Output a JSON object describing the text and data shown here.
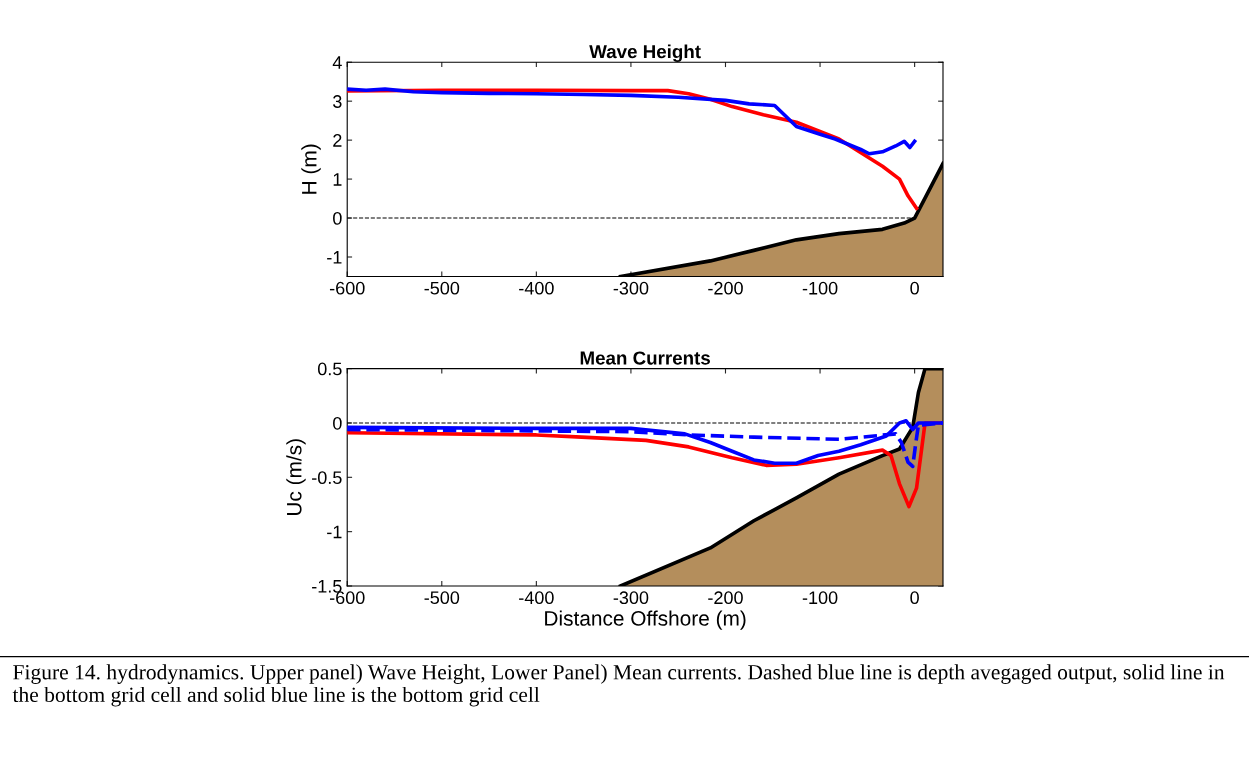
{
  "chart_data": [
    {
      "type": "line",
      "title": "Wave Height",
      "ylabel": "H (m)",
      "xlim": [
        -600,
        30
      ],
      "xticks": [
        -600,
        -500,
        -400,
        -300,
        -200,
        -100,
        0
      ],
      "ylim": [
        -1.5,
        4
      ],
      "yticks": [
        -1,
        0,
        1,
        2,
        3,
        4
      ],
      "grid": false,
      "line_style": "solid",
      "marker": "none",
      "ref_lines": [
        {
          "axis": "y",
          "value": 0,
          "color": "#000000",
          "line_style": "dashed"
        }
      ],
      "series": [
        {
          "type": "area",
          "color": "#b48e5c",
          "x": [
            -311,
            -216,
            -170,
            -125,
            -80,
            -34,
            -11,
            0,
            30
          ],
          "values": [
            -1.5,
            -1.1,
            -0.83,
            -0.56,
            -0.4,
            -0.29,
            -0.13,
            0,
            1.4
          ]
        },
        {
          "color": "#ff0000",
          "x": [
            -600,
            -500,
            -400,
            -300,
            -261,
            -239,
            -216,
            -193,
            -160,
            -125,
            -80,
            -34,
            -16,
            -7,
            2
          ],
          "values": [
            3.26,
            3.28,
            3.28,
            3.27,
            3.27,
            3.19,
            3.05,
            2.86,
            2.65,
            2.46,
            2.03,
            1.33,
            1.0,
            0.57,
            0.25
          ]
        },
        {
          "color": "#0000ff",
          "x": [
            -600,
            -580,
            -560,
            -530,
            -500,
            -450,
            -400,
            -350,
            -300,
            -250,
            -200,
            -175,
            -148,
            -125,
            -100,
            -84,
            -57,
            -48,
            -34,
            -20,
            -11,
            -5,
            0
          ],
          "values": [
            3.31,
            3.28,
            3.31,
            3.24,
            3.22,
            3.2,
            3.19,
            3.17,
            3.15,
            3.1,
            3.02,
            2.93,
            2.89,
            2.35,
            2.15,
            2.03,
            1.76,
            1.65,
            1.7,
            1.85,
            1.97,
            1.81,
            1.97
          ]
        }
      ]
    },
    {
      "type": "line",
      "title": "Mean Currents",
      "xlabel": "Distance Offshore (m)",
      "ylabel": "Uc (m/s)",
      "xlim": [
        -600,
        30
      ],
      "xticks": [
        -600,
        -500,
        -400,
        -300,
        -200,
        -100,
        0
      ],
      "ylim": [
        -1.5,
        0.5
      ],
      "yticks": [
        -1.5,
        -1,
        -0.5,
        0,
        0.5
      ],
      "grid": false,
      "line_style": "solid",
      "marker": "none",
      "ref_lines": [
        {
          "axis": "y",
          "value": 0,
          "color": "#000000",
          "line_style": "dashed"
        }
      ],
      "annotations": [
        "Figure 14. hydrodynamics. Upper panel) Wave Height, Lower Panel) Mean currents. Dashed blue line is depth avegaged output, solid line in the bottom grid cell and solid blue line is the bottom grid cell"
      ],
      "series": [
        {
          "type": "area",
          "color": "#b48e5c",
          "x": [
            -311,
            -216,
            -170,
            -125,
            -80,
            -34,
            -16,
            -2,
            4,
            11,
            30
          ],
          "values": [
            -1.5,
            -1.15,
            -0.9,
            -0.69,
            -0.47,
            -0.3,
            -0.24,
            -0.04,
            0.28,
            0.5,
            0.5
          ]
        },
        {
          "color": "#ff0000",
          "x": [
            -600,
            -400,
            -352,
            -284,
            -239,
            -193,
            -157,
            -125,
            -80,
            -34,
            -25,
            -16,
            -6,
            2,
            11,
            30
          ],
          "values": [
            -0.09,
            -0.11,
            -0.13,
            -0.16,
            -0.22,
            -0.32,
            -0.39,
            -0.38,
            -0.32,
            -0.25,
            -0.3,
            -0.56,
            -0.77,
            -0.6,
            0,
            0
          ]
        },
        {
          "color": "#0000ff",
          "line_style": "dashed",
          "x": [
            -600,
            -300,
            -239,
            -170,
            -80,
            -43,
            -20,
            -14,
            -7,
            -2,
            1,
            4,
            30
          ],
          "values": [
            -0.06,
            -0.08,
            -0.11,
            -0.13,
            -0.15,
            -0.12,
            -0.1,
            -0.18,
            -0.36,
            -0.4,
            -0.2,
            -0.02,
            0
          ]
        },
        {
          "color": "#0000ff",
          "x": [
            -600,
            -400,
            -300,
            -243,
            -216,
            -193,
            -170,
            -148,
            -125,
            -102,
            -80,
            -57,
            -30,
            -16,
            -9,
            -2,
            4,
            30
          ],
          "values": [
            -0.04,
            -0.05,
            -0.05,
            -0.1,
            -0.18,
            -0.26,
            -0.34,
            -0.37,
            -0.37,
            -0.3,
            -0.26,
            -0.2,
            -0.12,
            0,
            0.02,
            -0.06,
            0,
            0
          ]
        }
      ]
    }
  ]
}
